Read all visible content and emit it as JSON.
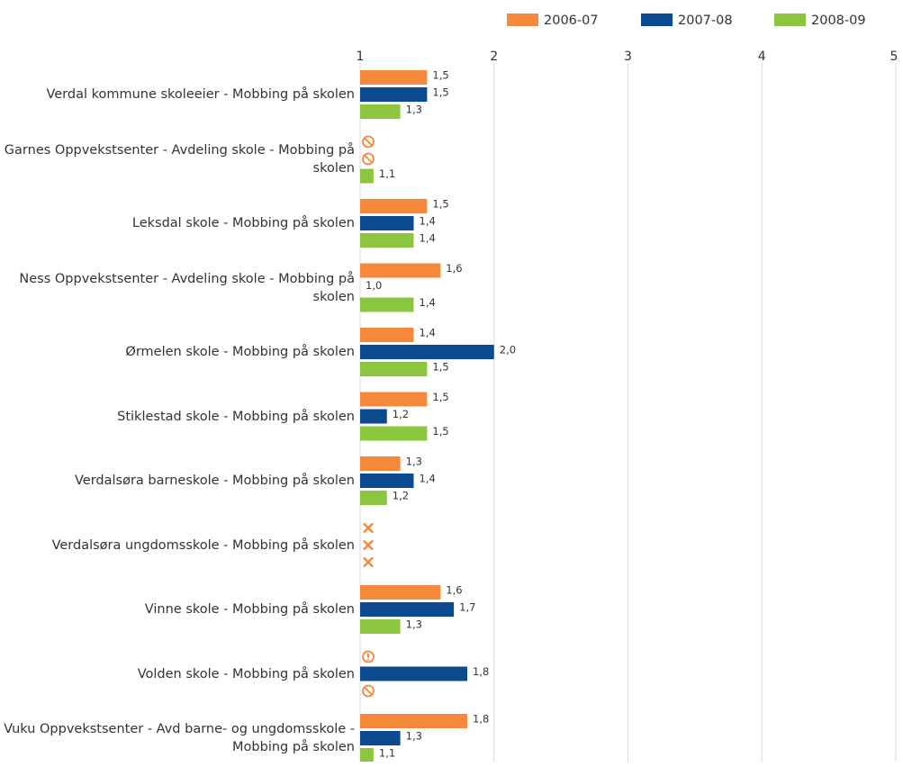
{
  "chart_data": {
    "type": "bar",
    "orientation": "horizontal",
    "categories": [
      "Verdal kommune skoleeier - Mobbing på skolen",
      "Garnes Oppvekstsenter - Avdeling skole - Mobbing på skolen",
      "Leksdal skole - Mobbing på skolen",
      "Ness Oppvekstsenter - Avdeling skole - Mobbing på skolen",
      "Ørmelen skole - Mobbing på skolen",
      "Stiklestad skole - Mobbing på skolen",
      "Verdalsøra barneskole - Mobbing på skolen",
      "Verdalsøra ungdomsskole - Mobbing på skolen",
      "Vinne skole - Mobbing på skolen",
      "Volden skole - Mobbing på skolen",
      "Vuku Oppvekstsenter - Avd barne- og ungdomsskole - Mobbing på skolen"
    ],
    "series": [
      {
        "name": "2006-07",
        "color": "#f5883a",
        "values": [
          1.5,
          null,
          1.5,
          1.6,
          1.4,
          1.5,
          1.3,
          null,
          1.6,
          null,
          1.8
        ],
        "value_labels": [
          "1,5",
          null,
          "1,5",
          "1,6",
          "1,4",
          "1,5",
          "1,3",
          null,
          "1,6",
          null,
          "1,8"
        ]
      },
      {
        "name": "2007-08",
        "color": "#0b4a8f",
        "values": [
          1.5,
          null,
          1.4,
          1.0,
          2.0,
          1.2,
          1.4,
          null,
          1.7,
          1.8,
          1.3
        ],
        "value_labels": [
          "1,5",
          null,
          "1,4",
          "1,0",
          "2,0",
          "1,2",
          "1,4",
          null,
          "1,7",
          "1,8",
          "1,3"
        ]
      },
      {
        "name": "2008-09",
        "color": "#8cc63f",
        "values": [
          1.3,
          1.1,
          1.4,
          1.4,
          1.5,
          1.5,
          1.2,
          null,
          1.3,
          null,
          1.1
        ],
        "value_labels": [
          "1,3",
          "1,1",
          "1,4",
          "1,4",
          "1,5",
          "1,5",
          "1,2",
          null,
          "1,3",
          null,
          "1,1"
        ]
      }
    ],
    "xlim": [
      1,
      5
    ],
    "xticks": [
      1,
      2,
      3,
      4,
      5
    ],
    "grid": true,
    "legend": "top-right"
  }
}
